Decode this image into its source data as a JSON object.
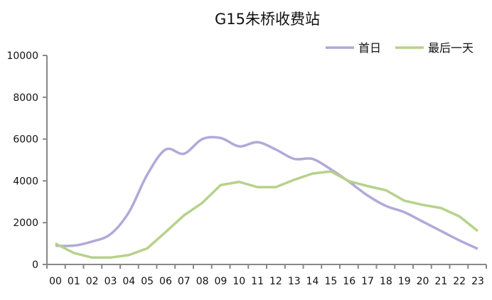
{
  "chart_data": {
    "type": "line",
    "title": "G15朱桥收费站",
    "xlabel": "",
    "ylabel": "",
    "categories": [
      "00",
      "01",
      "02",
      "03",
      "04",
      "05",
      "06",
      "07",
      "08",
      "09",
      "10",
      "11",
      "12",
      "13",
      "14",
      "15",
      "16",
      "17",
      "18",
      "19",
      "20",
      "21",
      "22",
      "23"
    ],
    "ylim": [
      0,
      10000
    ],
    "yticks": [
      "0",
      "2000",
      "4000",
      "6000",
      "8000",
      "10000"
    ],
    "grid": false,
    "legend": "top-right",
    "series": [
      {
        "name": "首日",
        "color": "#b1a9d9",
        "smooth": true,
        "values": [
          900,
          900,
          1100,
          1450,
          2500,
          4300,
          5500,
          5300,
          6000,
          6050,
          5650,
          5850,
          5500,
          5050,
          5050,
          4550,
          3950,
          3300,
          2800,
          2500,
          2050,
          1600,
          1150,
          750
        ]
      },
      {
        "name": "最后一天",
        "color": "#b6d28b",
        "smooth": false,
        "values": [
          1000,
          550,
          330,
          330,
          450,
          770,
          1550,
          2350,
          2950,
          3800,
          3950,
          3700,
          3700,
          4050,
          4350,
          4450,
          3980,
          3750,
          3550,
          3050,
          2850,
          2700,
          2300,
          1600
        ]
      }
    ]
  }
}
